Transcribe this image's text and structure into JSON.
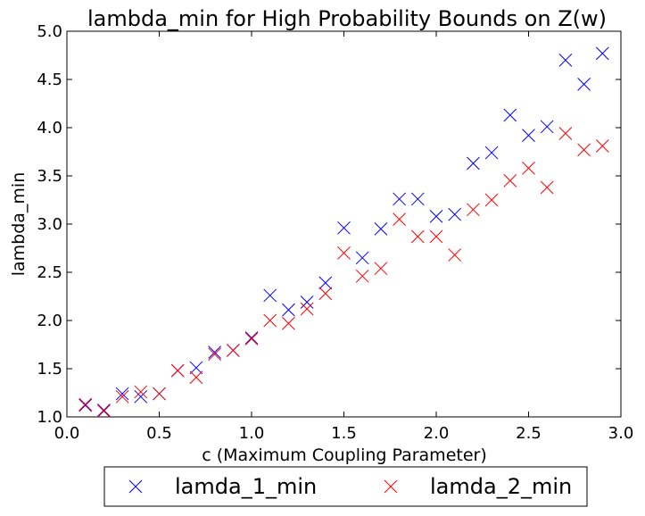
{
  "chart_data": {
    "type": "scatter",
    "title": "lambda_min for High Probability Bounds on Z(w)",
    "xlabel": "c (Maximum Coupling Parameter)",
    "ylabel": "lambda_min",
    "xlim": [
      0.0,
      3.0
    ],
    "ylim": [
      1.0,
      5.0
    ],
    "xticks": [
      "0.0",
      "0.5",
      "1.0",
      "1.5",
      "2.0",
      "2.5",
      "3.0"
    ],
    "yticks": [
      "1.0",
      "1.5",
      "2.0",
      "2.5",
      "3.0",
      "3.5",
      "4.0",
      "4.5",
      "5.0"
    ],
    "grid": false,
    "legend_position": "bottom, below plot",
    "marker": "x",
    "x": [
      0.1,
      0.2,
      0.3,
      0.4,
      0.5,
      0.6,
      0.7,
      0.8,
      0.9,
      1.0,
      1.1,
      1.2,
      1.3,
      1.4,
      1.5,
      1.6,
      1.7,
      1.8,
      1.9,
      2.0,
      2.1,
      2.2,
      2.3,
      2.4,
      2.5,
      2.6,
      2.7,
      2.8,
      2.9
    ],
    "series": [
      {
        "name": "lamda_1_min",
        "color": "#0000ff",
        "values": [
          1.12,
          1.07,
          1.24,
          1.21,
          1.24,
          1.48,
          1.51,
          1.67,
          1.69,
          1.82,
          2.26,
          2.11,
          2.19,
          2.39,
          2.96,
          2.65,
          2.95,
          3.26,
          3.26,
          3.08,
          3.1,
          3.63,
          3.74,
          4.13,
          3.92,
          4.01,
          4.7,
          4.45,
          4.77
        ]
      },
      {
        "name": "lamda_2_min",
        "color": "#ff0000",
        "values": [
          1.13,
          1.06,
          1.21,
          1.26,
          1.24,
          1.48,
          1.41,
          1.65,
          1.69,
          1.81,
          2.0,
          1.97,
          2.12,
          2.28,
          2.7,
          2.46,
          2.54,
          3.05,
          2.87,
          2.87,
          2.68,
          3.15,
          3.25,
          3.45,
          3.58,
          3.38,
          3.94,
          3.77,
          3.81
        ]
      }
    ]
  }
}
